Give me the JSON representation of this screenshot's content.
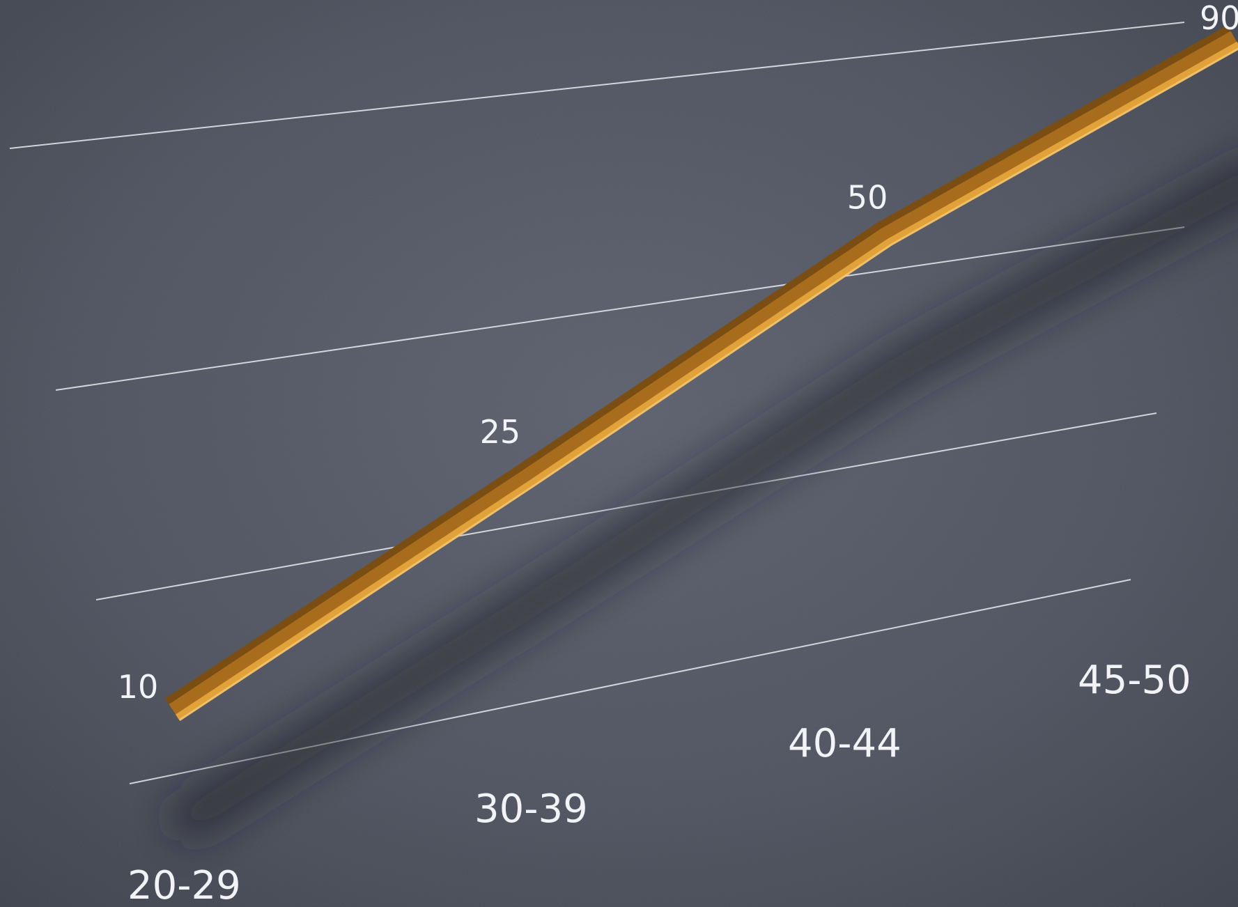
{
  "chart_data": {
    "type": "line",
    "categories": [
      "20-29",
      "30-39",
      "40-44",
      "45-50"
    ],
    "values": [
      10,
      25,
      50,
      90
    ],
    "data_labels": [
      "10",
      "25",
      "50",
      "90"
    ],
    "title": "",
    "xlabel": "",
    "ylabel": "",
    "ylim": [
      0,
      90
    ],
    "grid": true,
    "legend": "none",
    "line_color": "#e2a23a",
    "line_shadow_color": "#7a4e12",
    "grid_color": "#e9ebef",
    "background_color": "#4d525e",
    "text_color": "#f2f3f6"
  }
}
